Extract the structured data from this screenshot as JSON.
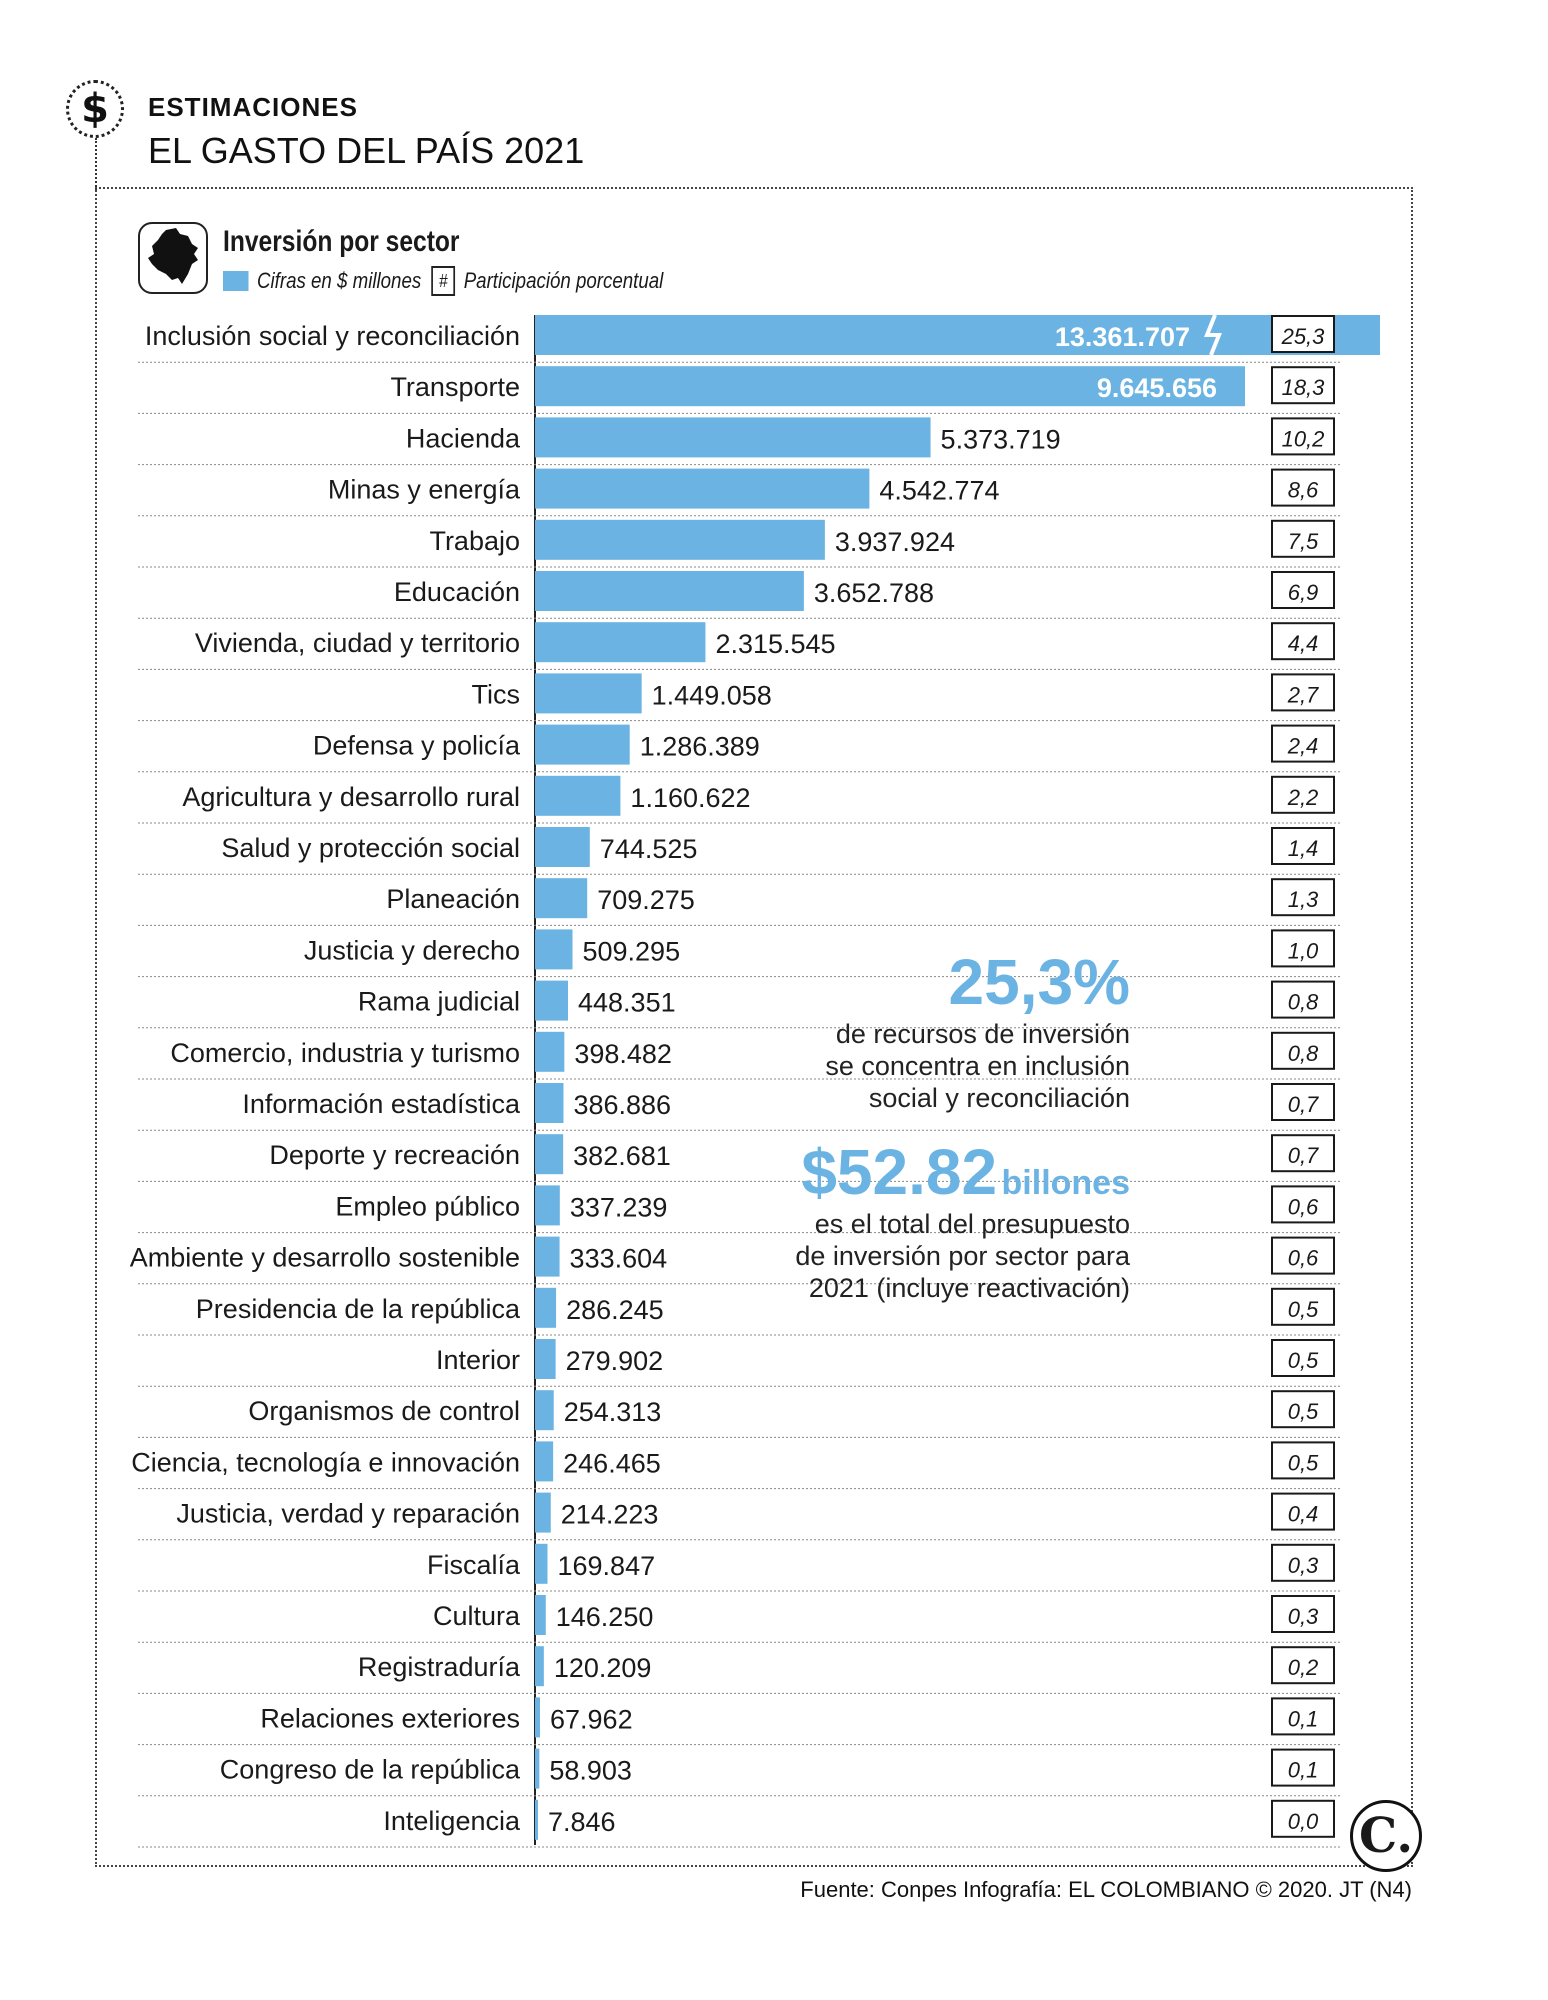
{
  "header": {
    "icon": "dollar-icon",
    "icon_glyph": "$",
    "kicker": "ESTIMACIONES",
    "title": "EL GASTO DEL PAÍS 2021"
  },
  "chart_header": {
    "subtitle": "Inversión por sector",
    "legend_value": "Cifras en $ millones",
    "legend_share_symbol": "#",
    "legend_share": "Participación porcentual"
  },
  "colors": {
    "bar": "#6bb3e3",
    "accent_text": "#6bb3e3",
    "text": "#1a1a1a"
  },
  "chart_data": {
    "type": "bar",
    "orientation": "horizontal",
    "title": "Inversión por sector",
    "value_unit": "Cifras en $ millones",
    "share_unit": "Participación porcentual",
    "axis_break_on_first_bar": true,
    "categories": [
      "Inclusión social y reconciliación",
      "Transporte",
      "Hacienda",
      "Minas y energía",
      "Trabajo",
      "Educación",
      "Vivienda, ciudad y territorio",
      "Tics",
      "Defensa y policía",
      "Agricultura y desarrollo rural",
      "Salud y protección social",
      "Planeación",
      "Justicia y derecho",
      "Rama judicial",
      "Comercio, industria y turismo",
      "Información estadística",
      "Deporte y recreación",
      "Empleo público",
      "Ambiente y desarrollo sostenible",
      "Presidencia de la república",
      "Interior",
      "Organismos de control",
      "Ciencia, tecnología e innovación",
      "Justicia, verdad y reparación",
      "Fiscalía",
      "Cultura",
      "Registraduría",
      "Relaciones exteriores",
      "Congreso de la república",
      "Inteligencia"
    ],
    "values": [
      13361707,
      9645656,
      5373719,
      4542774,
      3937924,
      3652788,
      2315545,
      1449058,
      1286389,
      1160622,
      744525,
      709275,
      509295,
      448351,
      398482,
      386886,
      382681,
      337239,
      333604,
      286245,
      279902,
      254313,
      246465,
      214223,
      169847,
      146250,
      120209,
      67962,
      58903,
      7846
    ],
    "value_labels": [
      "13.361.707",
      "9.645.656",
      "5.373.719",
      "4.542.774",
      "3.937.924",
      "3.652.788",
      "2.315.545",
      "1.449.058",
      "1.286.389",
      "1.160.622",
      "744.525",
      "709.275",
      "509.295",
      "448.351",
      "398.482",
      "386.886",
      "382.681",
      "337.239",
      "333.604",
      "286.245",
      "279.902",
      "254.313",
      "246.465",
      "214.223",
      "169.847",
      "146.250",
      "120.209",
      "67.962",
      "58.903",
      "7.846"
    ],
    "shares": [
      "25,3",
      "18,3",
      "10,2",
      "8,6",
      "7,5",
      "6,9",
      "4,4",
      "2,7",
      "2,4",
      "2,2",
      "1,4",
      "1,3",
      "1,0",
      "0,8",
      "0,8",
      "0,7",
      "0,7",
      "0,6",
      "0,6",
      "0,5",
      "0,5",
      "0,5",
      "0,5",
      "0,4",
      "0,3",
      "0,3",
      "0,2",
      "0,1",
      "0,1",
      "0,0"
    ]
  },
  "callouts": {
    "share_big": "25,3%",
    "share_lines": [
      "de recursos de inversión",
      "se concentra en inclusión",
      "social y reconciliación"
    ],
    "total_big": "$52.82",
    "total_unit": "billones",
    "total_lines": [
      "es el total del presupuesto",
      "de inversión por sector para",
      "2021 (incluye reactivación)"
    ]
  },
  "footer": {
    "logo_glyph": "C.",
    "source": "Fuente: Conpes Infografía: EL COLOMBIANO © 2020. JT (N4)"
  }
}
